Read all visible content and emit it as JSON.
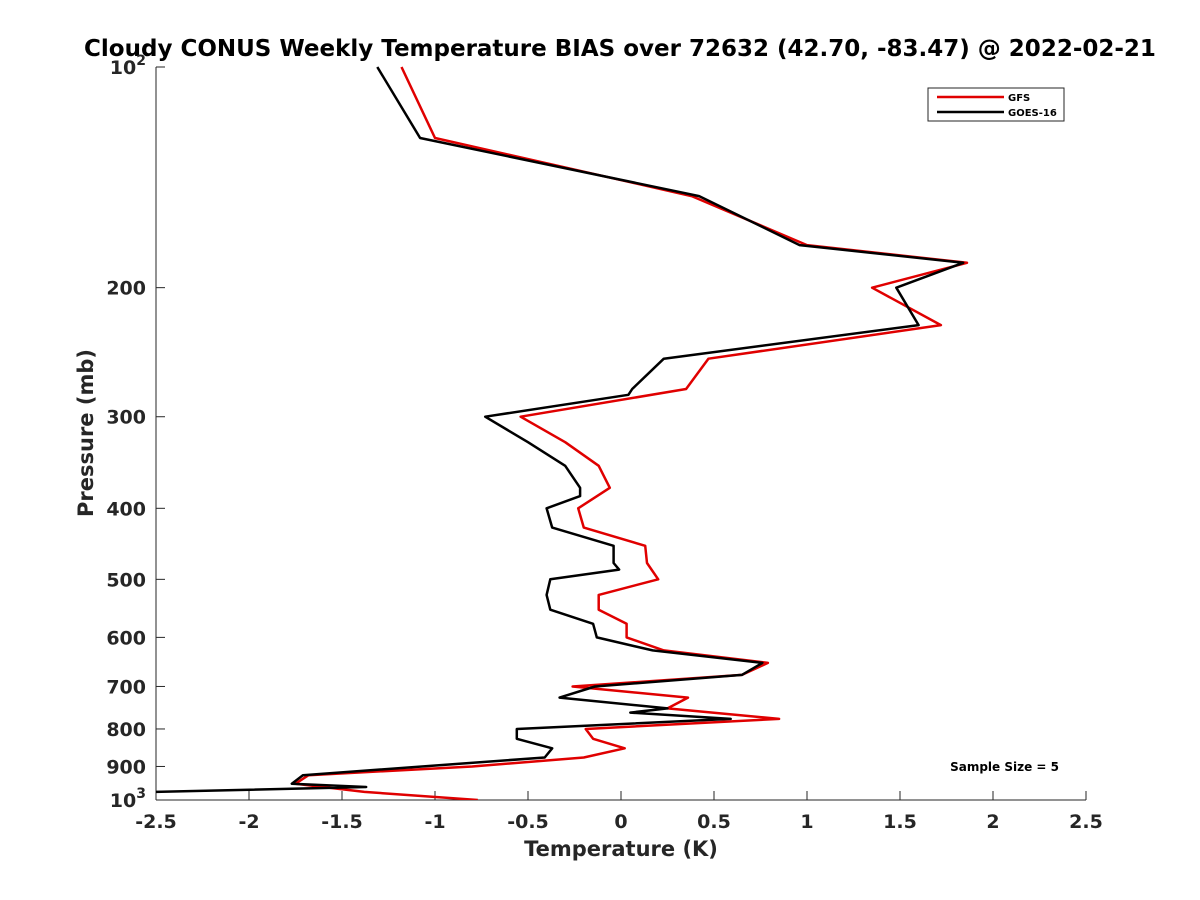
{
  "chart_data": {
    "type": "line",
    "title": "Cloudy CONUS Weekly Temperature BIAS over 72632 (42.70, -83.47) @ 2022-02-21",
    "xlabel": "Temperature (K)",
    "ylabel": "Pressure (mb)",
    "xlim": [
      -2.5,
      2.5
    ],
    "ylim": [
      100,
      1000
    ],
    "yscale": "log",
    "y_reversed": true,
    "x_ticks": [
      "-2.5",
      "-2",
      "-1.5",
      "-1",
      "-0.5",
      "0",
      "0.5",
      "1",
      "1.5",
      "2",
      "2.5"
    ],
    "y_ticks": [
      {
        "value": 100,
        "base": "10",
        "exp": "2"
      },
      {
        "value": 200,
        "label": "200"
      },
      {
        "value": 300,
        "label": "300"
      },
      {
        "value": 400,
        "label": "400"
      },
      {
        "value": 500,
        "label": "500"
      },
      {
        "value": 600,
        "label": "600"
      },
      {
        "value": 700,
        "label": "700"
      },
      {
        "value": 800,
        "label": "800"
      },
      {
        "value": 900,
        "label": "900"
      },
      {
        "value": 1000,
        "base": "10",
        "exp": "3"
      }
    ],
    "legend_position": "top-right",
    "annotation": "Sample Size = 5",
    "series": [
      {
        "name": "GFS",
        "color": "#e00000",
        "points": [
          {
            "x": -1.18,
            "y": 100
          },
          {
            "x": -1.0,
            "y": 125
          },
          {
            "x": 0.38,
            "y": 150
          },
          {
            "x": 1.0,
            "y": 175
          },
          {
            "x": 1.86,
            "y": 185
          },
          {
            "x": 1.35,
            "y": 200
          },
          {
            "x": 1.72,
            "y": 225
          },
          {
            "x": 0.47,
            "y": 250
          },
          {
            "x": 0.35,
            "y": 275
          },
          {
            "x": -0.54,
            "y": 300
          },
          {
            "x": -0.3,
            "y": 325
          },
          {
            "x": -0.12,
            "y": 350
          },
          {
            "x": -0.06,
            "y": 375
          },
          {
            "x": -0.23,
            "y": 400
          },
          {
            "x": -0.2,
            "y": 425
          },
          {
            "x": 0.13,
            "y": 450
          },
          {
            "x": 0.14,
            "y": 475
          },
          {
            "x": 0.2,
            "y": 500
          },
          {
            "x": -0.12,
            "y": 525
          },
          {
            "x": -0.12,
            "y": 550
          },
          {
            "x": 0.03,
            "y": 575
          },
          {
            "x": 0.03,
            "y": 600
          },
          {
            "x": 0.23,
            "y": 625
          },
          {
            "x": 0.79,
            "y": 650
          },
          {
            "x": 0.65,
            "y": 675
          },
          {
            "x": -0.26,
            "y": 700
          },
          {
            "x": 0.36,
            "y": 725
          },
          {
            "x": 0.25,
            "y": 750
          },
          {
            "x": 0.85,
            "y": 775
          },
          {
            "x": -0.19,
            "y": 800
          },
          {
            "x": -0.15,
            "y": 825
          },
          {
            "x": 0.02,
            "y": 850
          },
          {
            "x": -0.2,
            "y": 875
          },
          {
            "x": -0.8,
            "y": 900
          },
          {
            "x": -1.68,
            "y": 925
          },
          {
            "x": -1.75,
            "y": 950
          },
          {
            "x": -1.38,
            "y": 975
          },
          {
            "x": -0.77,
            "y": 1000
          }
        ]
      },
      {
        "name": "GOES-16",
        "color": "#000000",
        "points": [
          {
            "x": -1.31,
            "y": 100
          },
          {
            "x": -1.08,
            "y": 125
          },
          {
            "x": 0.42,
            "y": 150
          },
          {
            "x": 0.96,
            "y": 175
          },
          {
            "x": 1.84,
            "y": 185
          },
          {
            "x": 1.48,
            "y": 200
          },
          {
            "x": 1.6,
            "y": 225
          },
          {
            "x": 0.23,
            "y": 250
          },
          {
            "x": 0.06,
            "y": 275
          },
          {
            "x": 0.04,
            "y": 280
          },
          {
            "x": -0.73,
            "y": 300
          },
          {
            "x": -0.5,
            "y": 325
          },
          {
            "x": -0.3,
            "y": 350
          },
          {
            "x": -0.22,
            "y": 375
          },
          {
            "x": -0.22,
            "y": 385
          },
          {
            "x": -0.4,
            "y": 400
          },
          {
            "x": -0.37,
            "y": 425
          },
          {
            "x": -0.04,
            "y": 450
          },
          {
            "x": -0.04,
            "y": 475
          },
          {
            "x": -0.01,
            "y": 485
          },
          {
            "x": -0.38,
            "y": 500
          },
          {
            "x": -0.4,
            "y": 525
          },
          {
            "x": -0.38,
            "y": 550
          },
          {
            "x": -0.15,
            "y": 575
          },
          {
            "x": -0.13,
            "y": 600
          },
          {
            "x": 0.17,
            "y": 625
          },
          {
            "x": 0.76,
            "y": 650
          },
          {
            "x": 0.65,
            "y": 675
          },
          {
            "x": -0.14,
            "y": 700
          },
          {
            "x": -0.33,
            "y": 725
          },
          {
            "x": 0.25,
            "y": 750
          },
          {
            "x": 0.05,
            "y": 760
          },
          {
            "x": 0.59,
            "y": 775
          },
          {
            "x": -0.56,
            "y": 800
          },
          {
            "x": -0.56,
            "y": 825
          },
          {
            "x": -0.37,
            "y": 850
          },
          {
            "x": -0.41,
            "y": 875
          },
          {
            "x": -1.71,
            "y": 925
          },
          {
            "x": -1.77,
            "y": 950
          },
          {
            "x": -1.37,
            "y": 960
          },
          {
            "x": -2.5,
            "y": 975
          }
        ]
      }
    ]
  }
}
